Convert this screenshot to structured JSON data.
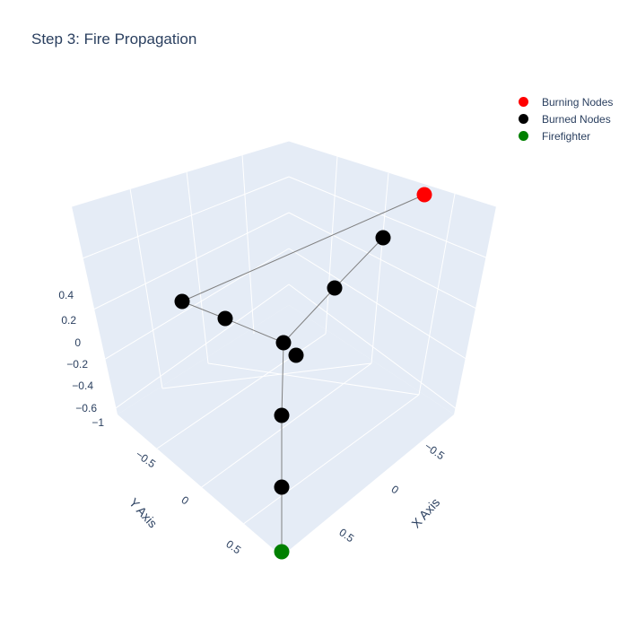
{
  "title": "Step 3: Fire Propagation",
  "legend": [
    {
      "label": "Burning Nodes",
      "color": "#ff0000"
    },
    {
      "label": "Burned Nodes",
      "color": "#000000"
    },
    {
      "label": "Firefighter",
      "color": "#008000"
    }
  ],
  "chart_data": {
    "type": "scatter3d",
    "title": "Step 3: Fire Propagation",
    "xlabel": "X Axis",
    "ylabel": "Y Axis",
    "zlabel": "",
    "x_ticks": [
      "−0.5",
      "0",
      "0.5"
    ],
    "y_ticks": [
      "−0.5",
      "0",
      "0.5"
    ],
    "z_ticks": [
      "−1",
      "−0.6",
      "−0.4",
      "−0.2",
      "0",
      "0.2",
      "0.4"
    ],
    "series": [
      {
        "name": "Burning Nodes",
        "color": "#ff0000",
        "points": [
          [
            -0.9,
            0.0,
            0.35
          ]
        ]
      },
      {
        "name": "Burned Nodes",
        "color": "#000000",
        "points": [
          [
            0.0,
            0.0,
            0.0
          ],
          [
            0.1,
            0.05,
            -0.15
          ],
          [
            -0.6,
            0.0,
            0.25
          ],
          [
            -0.3,
            0.0,
            0.12
          ],
          [
            0.0,
            -0.6,
            0.15
          ],
          [
            0.0,
            -0.3,
            0.05
          ],
          [
            0.3,
            0.3,
            -0.3
          ],
          [
            0.6,
            0.6,
            -0.6
          ]
        ]
      },
      {
        "name": "Firefighter",
        "color": "#008000",
        "points": [
          [
            0.9,
            0.9,
            -0.9
          ]
        ]
      }
    ],
    "edges": [
      [
        [
          0.0,
          0.0,
          0.0
        ],
        [
          -0.3,
          0.0,
          0.12
        ]
      ],
      [
        [
          -0.3,
          0.0,
          0.12
        ],
        [
          -0.6,
          0.0,
          0.25
        ]
      ],
      [
        [
          -0.6,
          0.0,
          0.25
        ],
        [
          -0.9,
          0.0,
          0.35
        ]
      ],
      [
        [
          0.0,
          0.0,
          0.0
        ],
        [
          0.0,
          -0.3,
          0.05
        ]
      ],
      [
        [
          0.0,
          -0.3,
          0.05
        ],
        [
          0.0,
          -0.6,
          0.15
        ]
      ],
      [
        [
          0.0,
          0.0,
          0.0
        ],
        [
          0.3,
          0.3,
          -0.3
        ]
      ],
      [
        [
          0.3,
          0.3,
          -0.3
        ],
        [
          0.6,
          0.6,
          -0.6
        ]
      ],
      [
        [
          0.6,
          0.6,
          -0.6
        ],
        [
          0.9,
          0.9,
          -0.9
        ]
      ]
    ]
  }
}
